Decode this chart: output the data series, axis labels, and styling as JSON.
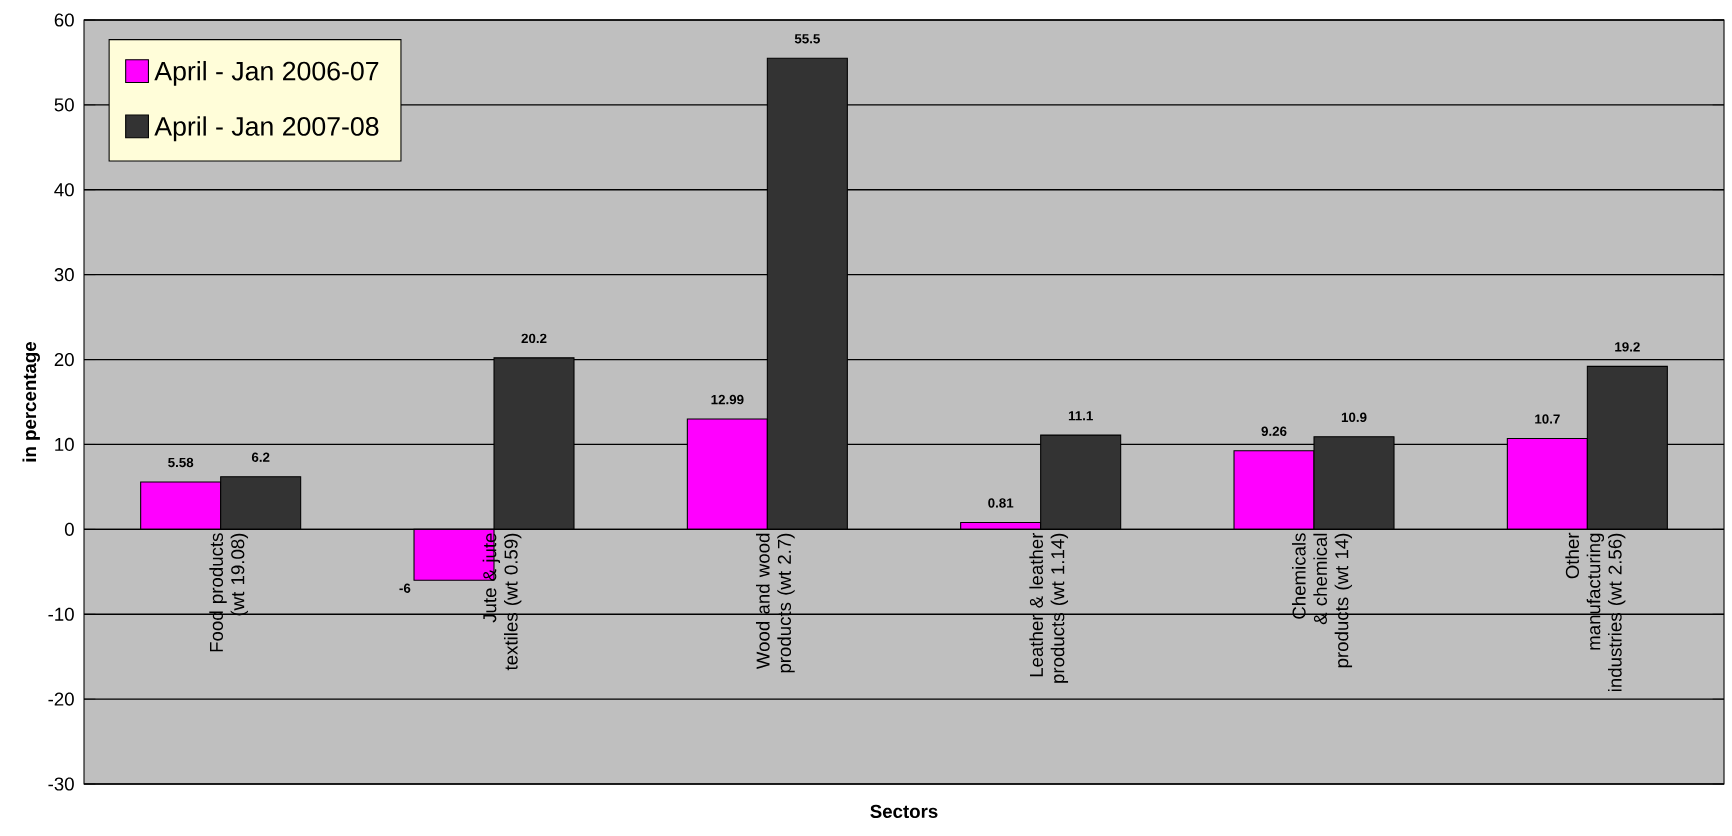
{
  "chart_data": {
    "type": "bar",
    "xlabel": "Sectors",
    "ylabel": "in percentage",
    "categories": [
      "Food products (wt 19.08)",
      "Jute & jute textiles (wt 0.59)",
      "Wood and wood products (wt 2.7)",
      "Leather & leather products (wt 1.14)",
      "Chemicals & chemical products (wt 14)",
      "Other manufacturing industries (wt 2.56)"
    ],
    "series": [
      {
        "name": "April - Jan 2006-07",
        "color": "#ff00ff",
        "values": [
          5.58,
          -6,
          12.99,
          0.81,
          9.26,
          10.7
        ]
      },
      {
        "name": "April - Jan 2007-08",
        "color": "#333333",
        "values": [
          6.2,
          20.2,
          55.5,
          11.1,
          10.9,
          19.2
        ]
      }
    ],
    "ylim": [
      -30,
      60
    ],
    "yticks": [
      -30,
      -20,
      -10,
      0,
      10,
      20,
      30,
      40,
      50,
      60
    ],
    "grid": "y",
    "legend": "top left",
    "data_labels": true
  }
}
